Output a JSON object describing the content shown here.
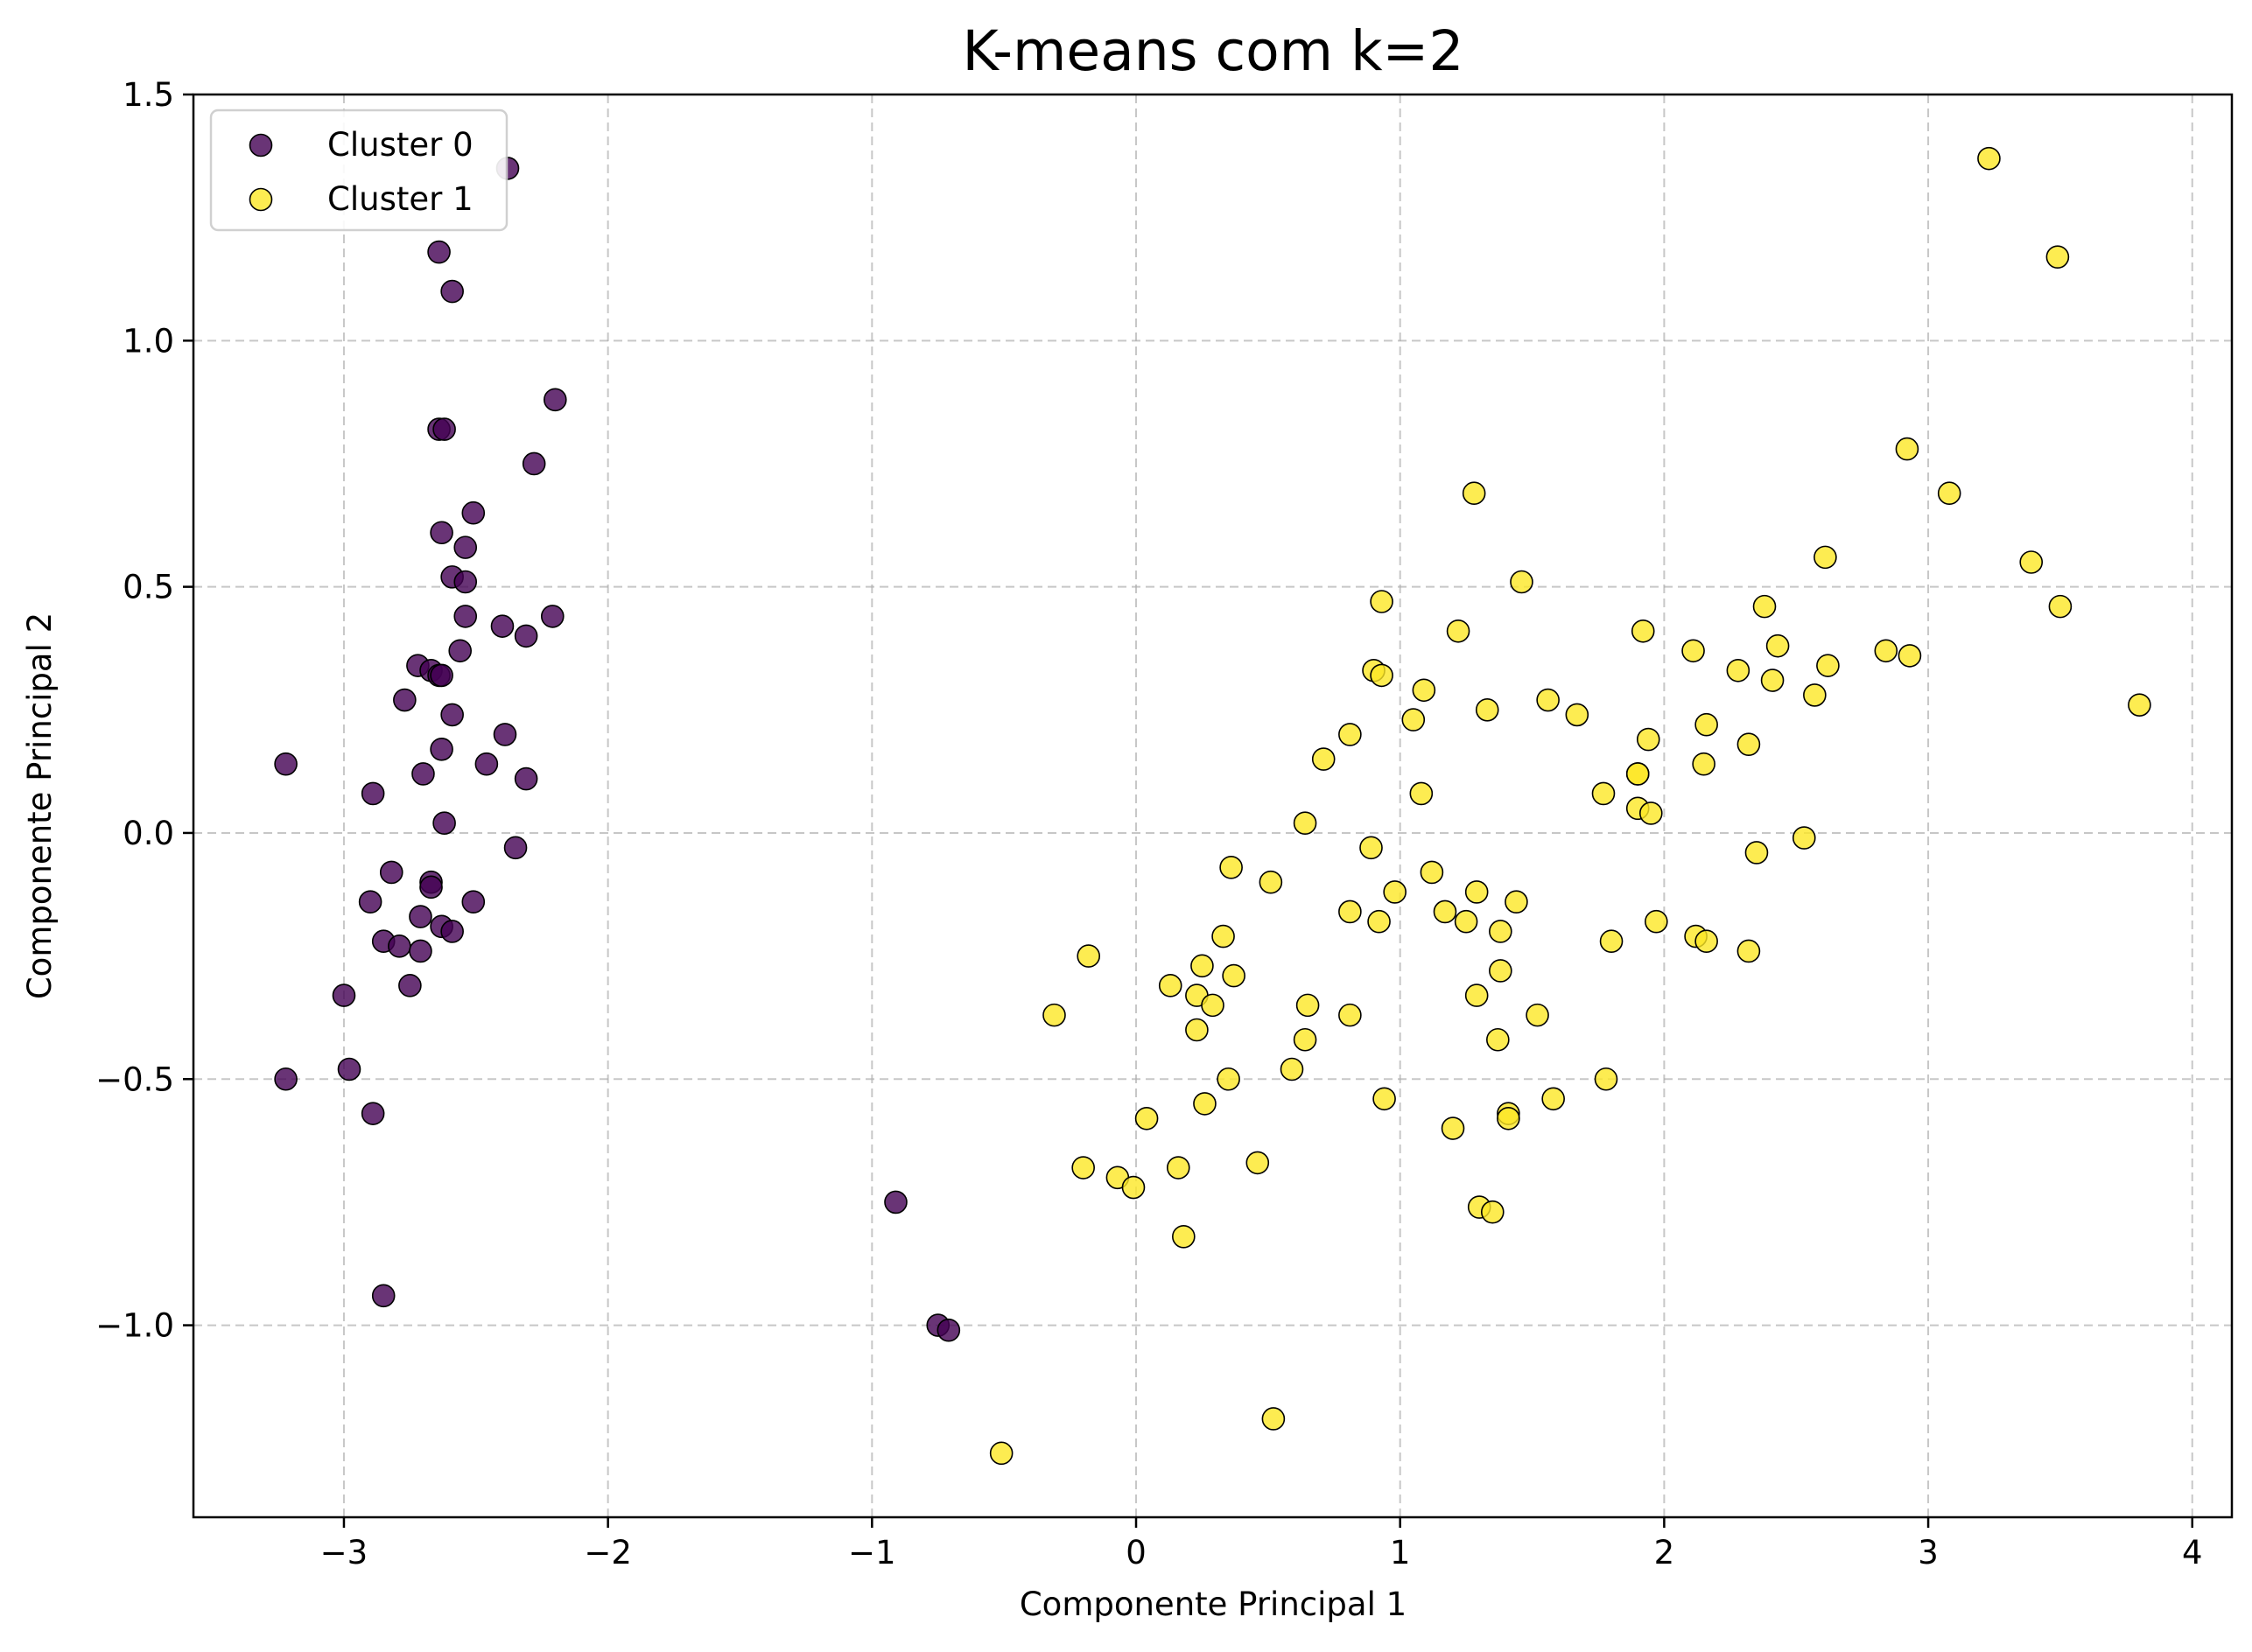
{
  "chart_data": {
    "type": "scatter",
    "title": "K-means com k=2",
    "xlabel": "Componente Principal 1",
    "ylabel": "Componente Principal 2",
    "xlim": [
      -3.57,
      4.15
    ],
    "ylim": [
      -1.39,
      1.5
    ],
    "xticks": [
      -3,
      -2,
      -1,
      0,
      1,
      2,
      3,
      4
    ],
    "yticks": [
      -1.0,
      -0.5,
      0.0,
      0.5,
      1.0,
      1.5
    ],
    "xtick_labels": [
      "−3",
      "−2",
      "−1",
      "0",
      "1",
      "2",
      "3",
      "4"
    ],
    "ytick_labels": [
      "−1.0",
      "−0.5",
      "0.0",
      "0.5",
      "1.0",
      "1.5"
    ],
    "grid": true,
    "legend_position": "top-left",
    "series": [
      {
        "name": "Cluster 0",
        "color": "#440154",
        "points": [
          [
            -2.38,
            1.35
          ],
          [
            -2.64,
            1.18
          ],
          [
            -2.59,
            1.1
          ],
          [
            -2.2,
            0.88
          ],
          [
            -2.64,
            0.82
          ],
          [
            -2.62,
            0.82
          ],
          [
            -2.28,
            0.75
          ],
          [
            -2.51,
            0.65
          ],
          [
            -2.63,
            0.61
          ],
          [
            -2.54,
            0.58
          ],
          [
            -2.59,
            0.52
          ],
          [
            -2.54,
            0.51
          ],
          [
            -2.54,
            0.44
          ],
          [
            -2.21,
            0.44
          ],
          [
            -2.4,
            0.42
          ],
          [
            -2.31,
            0.4
          ],
          [
            -2.56,
            0.37
          ],
          [
            -2.72,
            0.34
          ],
          [
            -2.67,
            0.33
          ],
          [
            -2.64,
            0.32
          ],
          [
            -2.63,
            0.32
          ],
          [
            -2.77,
            0.27
          ],
          [
            -2.59,
            0.24
          ],
          [
            -2.39,
            0.2
          ],
          [
            -2.63,
            0.17
          ],
          [
            -2.46,
            0.14
          ],
          [
            -3.22,
            0.14
          ],
          [
            -2.7,
            0.12
          ],
          [
            -2.31,
            0.11
          ],
          [
            -2.89,
            0.08
          ],
          [
            -2.62,
            0.02
          ],
          [
            -2.35,
            -0.03
          ],
          [
            -2.82,
            -0.08
          ],
          [
            -2.67,
            -0.1
          ],
          [
            -2.67,
            -0.11
          ],
          [
            -2.9,
            -0.14
          ],
          [
            -2.51,
            -0.14
          ],
          [
            -2.71,
            -0.17
          ],
          [
            -2.63,
            -0.19
          ],
          [
            -2.59,
            -0.2
          ],
          [
            -2.85,
            -0.22
          ],
          [
            -2.79,
            -0.23
          ],
          [
            -2.71,
            -0.24
          ],
          [
            -2.75,
            -0.31
          ],
          [
            -3.0,
            -0.33
          ],
          [
            -2.98,
            -0.48
          ],
          [
            -3.22,
            -0.5
          ],
          [
            -2.89,
            -0.57
          ],
          [
            -2.85,
            -0.94
          ],
          [
            -0.91,
            -0.75
          ],
          [
            -0.75,
            -1.0
          ],
          [
            -0.71,
            -1.01
          ]
        ]
      },
      {
        "name": "Cluster 1",
        "color": "#fde725",
        "points": [
          [
            3.23,
            1.37
          ],
          [
            3.49,
            1.17
          ],
          [
            2.92,
            0.78
          ],
          [
            1.28,
            0.69
          ],
          [
            3.08,
            0.69
          ],
          [
            2.61,
            0.56
          ],
          [
            3.39,
            0.55
          ],
          [
            1.46,
            0.51
          ],
          [
            2.38,
            0.46
          ],
          [
            0.93,
            0.47
          ],
          [
            3.5,
            0.46
          ],
          [
            1.22,
            0.41
          ],
          [
            1.92,
            0.41
          ],
          [
            2.43,
            0.38
          ],
          [
            2.84,
            0.37
          ],
          [
            2.11,
            0.37
          ],
          [
            2.93,
            0.36
          ],
          [
            2.62,
            0.34
          ],
          [
            2.28,
            0.33
          ],
          [
            0.9,
            0.33
          ],
          [
            0.93,
            0.32
          ],
          [
            2.41,
            0.31
          ],
          [
            1.09,
            0.29
          ],
          [
            2.57,
            0.28
          ],
          [
            1.56,
            0.27
          ],
          [
            3.8,
            0.26
          ],
          [
            1.33,
            0.25
          ],
          [
            1.67,
            0.24
          ],
          [
            1.05,
            0.23
          ],
          [
            0.81,
            0.2
          ],
          [
            2.16,
            0.22
          ],
          [
            1.94,
            0.19
          ],
          [
            2.32,
            0.18
          ],
          [
            0.71,
            0.15
          ],
          [
            2.15,
            0.14
          ],
          [
            1.9,
            0.12
          ],
          [
            1.9,
            0.12
          ],
          [
            1.77,
            0.08
          ],
          [
            1.08,
            0.08
          ],
          [
            1.9,
            0.05
          ],
          [
            1.95,
            0.04
          ],
          [
            0.64,
            0.02
          ],
          [
            2.53,
            -0.01
          ],
          [
            0.89,
            -0.03
          ],
          [
            2.35,
            -0.04
          ],
          [
            0.36,
            -0.07
          ],
          [
            1.12,
            -0.08
          ],
          [
            0.51,
            -0.1
          ],
          [
            1.29,
            -0.12
          ],
          [
            0.98,
            -0.12
          ],
          [
            1.44,
            -0.14
          ],
          [
            0.81,
            -0.16
          ],
          [
            1.17,
            -0.16
          ],
          [
            1.25,
            -0.18
          ],
          [
            0.92,
            -0.18
          ],
          [
            1.97,
            -0.18
          ],
          [
            1.38,
            -0.2
          ],
          [
            0.33,
            -0.21
          ],
          [
            1.8,
            -0.22
          ],
          [
            2.12,
            -0.21
          ],
          [
            2.16,
            -0.22
          ],
          [
            2.32,
            -0.24
          ],
          [
            -0.18,
            -0.25
          ],
          [
            0.25,
            -0.27
          ],
          [
            1.38,
            -0.28
          ],
          [
            0.37,
            -0.29
          ],
          [
            0.13,
            -0.31
          ],
          [
            1.29,
            -0.33
          ],
          [
            0.23,
            -0.33
          ],
          [
            0.29,
            -0.35
          ],
          [
            0.65,
            -0.35
          ],
          [
            -0.31,
            -0.37
          ],
          [
            0.81,
            -0.37
          ],
          [
            1.52,
            -0.37
          ],
          [
            0.23,
            -0.4
          ],
          [
            0.64,
            -0.42
          ],
          [
            1.37,
            -0.42
          ],
          [
            0.59,
            -0.48
          ],
          [
            1.78,
            -0.5
          ],
          [
            0.35,
            -0.5
          ],
          [
            0.94,
            -0.54
          ],
          [
            1.58,
            -0.54
          ],
          [
            0.26,
            -0.55
          ],
          [
            1.41,
            -0.57
          ],
          [
            1.41,
            -0.58
          ],
          [
            0.04,
            -0.58
          ],
          [
            1.2,
            -0.6
          ],
          [
            0.46,
            -0.67
          ],
          [
            -0.2,
            -0.68
          ],
          [
            0.16,
            -0.68
          ],
          [
            -0.07,
            -0.7
          ],
          [
            -0.01,
            -0.72
          ],
          [
            1.3,
            -0.76
          ],
          [
            1.35,
            -0.77
          ],
          [
            0.18,
            -0.82
          ],
          [
            0.52,
            -1.19
          ],
          [
            -0.51,
            -1.26
          ]
        ]
      }
    ]
  }
}
